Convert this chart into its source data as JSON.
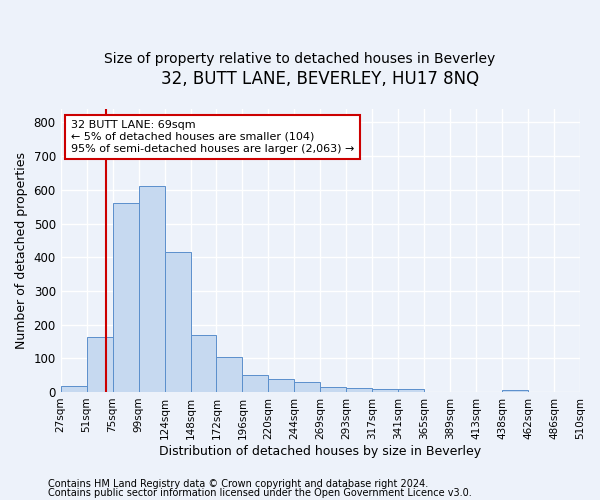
{
  "title": "32, BUTT LANE, BEVERLEY, HU17 8NQ",
  "subtitle": "Size of property relative to detached houses in Beverley",
  "xlabel": "Distribution of detached houses by size in Beverley",
  "ylabel": "Number of detached properties",
  "bar_values": [
    18,
    163,
    560,
    612,
    416,
    170,
    103,
    51,
    39,
    30,
    14,
    12,
    10,
    8,
    0,
    0,
    0,
    7,
    0,
    0
  ],
  "bar_labels": [
    "27sqm",
    "51sqm",
    "75sqm",
    "99sqm",
    "124sqm",
    "148sqm",
    "172sqm",
    "196sqm",
    "220sqm",
    "244sqm",
    "269sqm",
    "293sqm",
    "317sqm",
    "341sqm",
    "365sqm",
    "389sqm",
    "413sqm",
    "438sqm",
    "462sqm",
    "486sqm",
    "510sqm"
  ],
  "bar_color": "#c6d9f0",
  "bar_edge_color": "#5b8fcc",
  "vline_x": 1.75,
  "vline_color": "#cc0000",
  "annotation_title": "32 BUTT LANE: 69sqm",
  "annotation_line1": "← 5% of detached houses are smaller (104)",
  "annotation_line2": "95% of semi-detached houses are larger (2,063) →",
  "annotation_box_color": "#cc0000",
  "annotation_bg": "#ffffff",
  "ylim": [
    0,
    840
  ],
  "yticks": [
    0,
    100,
    200,
    300,
    400,
    500,
    600,
    700,
    800
  ],
  "footer1": "Contains HM Land Registry data © Crown copyright and database right 2024.",
  "footer2": "Contains public sector information licensed under the Open Government Licence v3.0.",
  "background_color": "#edf2fa",
  "plot_bg_color": "#edf2fa",
  "grid_color": "#ffffff",
  "title_fontsize": 12,
  "subtitle_fontsize": 10,
  "footer_fontsize": 7,
  "annotation_fontsize": 8,
  "ylabel_fontsize": 9,
  "xlabel_fontsize": 9,
  "tick_fontsize": 7.5
}
